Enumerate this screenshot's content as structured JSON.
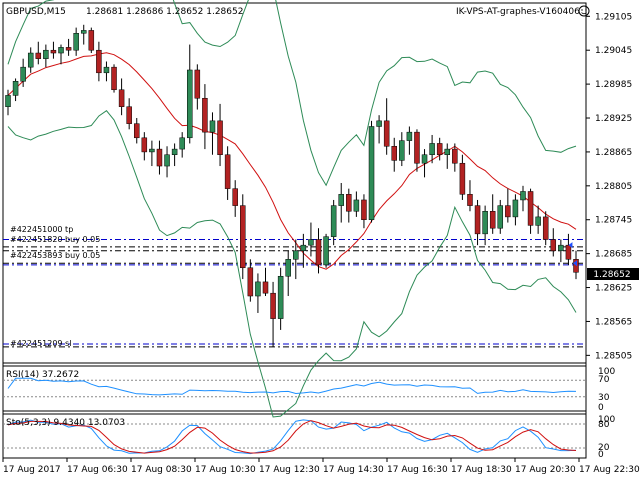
{
  "header": {
    "symbol_tf": "GBPUSD,M15",
    "ohlc": "1.28681 1.28686 1.28652 1.28652",
    "ea_name": "IK-VPS-AT-graphes-V160406",
    "ea_icon": "smiley-icon"
  },
  "colors": {
    "bull": "#2e8b57",
    "bear": "#b22222",
    "ma": "#d01010",
    "band": "#2e8b57",
    "grid_dash": "#0000cc",
    "order_dash": "#000000",
    "rsi": "#1e90ff",
    "sto_main": "#1e90ff",
    "sto_signal": "#d01010"
  },
  "orders": {
    "tp": "#422451000 tp",
    "buy_a": "#422451820 buy 0.05",
    "buy_b": "#422453893 buy 0.05",
    "sl": "#422451209 sl"
  },
  "price_scale": [
    "1.29105",
    "1.29045",
    "1.28985",
    "1.28925",
    "1.28865",
    "1.28805",
    "1.28745",
    "1.28685",
    "1.28625",
    "1.28565",
    "1.28505"
  ],
  "current_price": "1.28652",
  "rsi": {
    "label": "RSI(14) 37.2672",
    "ticks": [
      "100",
      "70",
      "30",
      "0"
    ]
  },
  "stochastic": {
    "label": "Sto(5,3,3) 9.4340 13.0703",
    "ticks": [
      "100",
      "80",
      "20",
      "0"
    ]
  },
  "time_axis": [
    "17 Aug 2017",
    "17 Aug 06:30",
    "17 Aug 08:30",
    "17 Aug 10:30",
    "17 Aug 12:30",
    "17 Aug 14:30",
    "17 Aug 16:30",
    "17 Aug 18:30",
    "17 Aug 20:30",
    "17 Aug 22:30"
  ],
  "chart_data": {
    "type": "candlestick",
    "ohlc": [
      [
        1.28945,
        1.28975,
        1.2893,
        1.28965
      ],
      [
        1.28965,
        1.28995,
        1.28955,
        1.2899
      ],
      [
        1.2899,
        1.2903,
        1.2898,
        1.29015
      ],
      [
        1.29015,
        1.2905,
        1.29005,
        1.2904
      ],
      [
        1.2904,
        1.2906,
        1.2902,
        1.2903
      ],
      [
        1.2903,
        1.29055,
        1.29015,
        1.29045
      ],
      [
        1.29045,
        1.2906,
        1.2903,
        1.2904
      ],
      [
        1.2904,
        1.29055,
        1.2902,
        1.2905
      ],
      [
        1.2905,
        1.29065,
        1.29035,
        1.29045
      ],
      [
        1.29045,
        1.29085,
        1.29035,
        1.29075
      ],
      [
        1.29075,
        1.2909,
        1.29055,
        1.2908
      ],
      [
        1.2908,
        1.29085,
        1.2904,
        1.29045
      ],
      [
        1.29045,
        1.2906,
        1.2899,
        1.29005
      ],
      [
        1.29005,
        1.29025,
        1.2899,
        1.29015
      ],
      [
        1.29015,
        1.2902,
        1.2897,
        1.28975
      ],
      [
        1.28975,
        1.28995,
        1.2893,
        1.28945
      ],
      [
        1.28945,
        1.2896,
        1.28905,
        1.28915
      ],
      [
        1.28915,
        1.28925,
        1.2888,
        1.2889
      ],
      [
        1.2889,
        1.289,
        1.2885,
        1.28865
      ],
      [
        1.28865,
        1.28885,
        1.2884,
        1.2887
      ],
      [
        1.2887,
        1.28885,
        1.28825,
        1.2884
      ],
      [
        1.2884,
        1.28875,
        1.2882,
        1.2886
      ],
      [
        1.2886,
        1.2888,
        1.2884,
        1.2887
      ],
      [
        1.2887,
        1.289,
        1.28855,
        1.2889
      ],
      [
        1.2889,
        1.29055,
        1.2888,
        1.2901
      ],
      [
        1.2901,
        1.2902,
        1.2894,
        1.2896
      ],
      [
        1.2896,
        1.28985,
        1.2887,
        1.289
      ],
      [
        1.289,
        1.28935,
        1.2886,
        1.2892
      ],
      [
        1.2892,
        1.2895,
        1.2884,
        1.2886
      ],
      [
        1.2886,
        1.28875,
        1.2878,
        1.288
      ],
      [
        1.288,
        1.28815,
        1.2875,
        1.2877
      ],
      [
        1.2877,
        1.2879,
        1.2864,
        1.2866
      ],
      [
        1.2866,
        1.28675,
        1.286,
        1.2861
      ],
      [
        1.2861,
        1.2865,
        1.2858,
        1.28635
      ],
      [
        1.28635,
        1.2866,
        1.2861,
        1.28615
      ],
      [
        1.28615,
        1.28635,
        1.2852,
        1.2857
      ],
      [
        1.2857,
        1.2866,
        1.2855,
        1.28645
      ],
      [
        1.28645,
        1.2869,
        1.2861,
        1.28675
      ],
      [
        1.28675,
        1.2871,
        1.2864,
        1.2869
      ],
      [
        1.2869,
        1.2872,
        1.2866,
        1.287
      ],
      [
        1.287,
        1.2874,
        1.2868,
        1.2871
      ],
      [
        1.2871,
        1.2873,
        1.2865,
        1.28665
      ],
      [
        1.28665,
        1.2872,
        1.2866,
        1.28715
      ],
      [
        1.28715,
        1.2878,
        1.287,
        1.2877
      ],
      [
        1.2877,
        1.2881,
        1.2874,
        1.2879
      ],
      [
        1.2879,
        1.288,
        1.2874,
        1.2876
      ],
      [
        1.2876,
        1.28795,
        1.2875,
        1.2878
      ],
      [
        1.2878,
        1.2879,
        1.2873,
        1.28745
      ],
      [
        1.28745,
        1.2892,
        1.2874,
        1.2891
      ],
      [
        1.2891,
        1.2893,
        1.2888,
        1.2892
      ],
      [
        1.2892,
        1.2896,
        1.2886,
        1.28875
      ],
      [
        1.28875,
        1.2889,
        1.2883,
        1.2885
      ],
      [
        1.2885,
        1.289,
        1.2884,
        1.28885
      ],
      [
        1.28885,
        1.2891,
        1.2886,
        1.289
      ],
      [
        1.289,
        1.28905,
        1.2883,
        1.28845
      ],
      [
        1.28845,
        1.2887,
        1.2882,
        1.2886
      ],
      [
        1.2886,
        1.28895,
        1.28845,
        1.2888
      ],
      [
        1.2888,
        1.2889,
        1.2885,
        1.2886
      ],
      [
        1.2886,
        1.2888,
        1.28835,
        1.2887
      ],
      [
        1.2887,
        1.2888,
        1.2883,
        1.28845
      ],
      [
        1.28845,
        1.2886,
        1.2878,
        1.2879
      ],
      [
        1.2879,
        1.28815,
        1.2876,
        1.2877
      ],
      [
        1.2877,
        1.2878,
        1.287,
        1.2872
      ],
      [
        1.2872,
        1.2877,
        1.287,
        1.2876
      ],
      [
        1.2876,
        1.2879,
        1.2872,
        1.2873
      ],
      [
        1.2873,
        1.2878,
        1.2872,
        1.2877
      ],
      [
        1.2877,
        1.288,
        1.2874,
        1.2875
      ],
      [
        1.2875,
        1.2879,
        1.28735,
        1.2878
      ],
      [
        1.2878,
        1.28805,
        1.2876,
        1.28795
      ],
      [
        1.28795,
        1.288,
        1.2872,
        1.28735
      ],
      [
        1.28735,
        1.2877,
        1.2872,
        1.2875
      ],
      [
        1.2875,
        1.2876,
        1.287,
        1.2871
      ],
      [
        1.2871,
        1.2873,
        1.2868,
        1.2869
      ],
      [
        1.2869,
        1.2871,
        1.2867,
        1.287
      ],
      [
        1.287,
        1.2872,
        1.28665,
        1.28675
      ],
      [
        1.28675,
        1.2869,
        1.2864,
        1.28652
      ]
    ],
    "ylim": [
      1.28495,
      1.29125
    ]
  }
}
